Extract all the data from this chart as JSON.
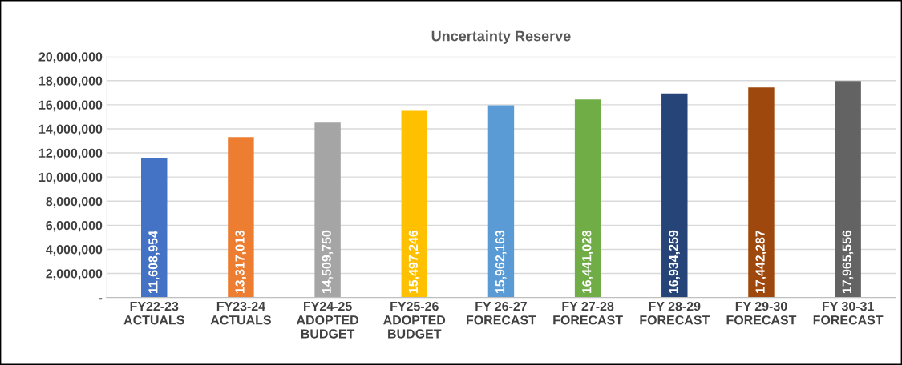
{
  "chart_data": {
    "type": "bar",
    "title": "Uncertainty Reserve",
    "categories": [
      "FY22-23\nACTUALS",
      "FY23-24\nACTUALS",
      "FY24-25\nADOPTED\nBUDGET",
      "FY25-26\nADOPTED\nBUDGET",
      "FY 26-27\nFORECAST",
      "FY 27-28\nFORECAST",
      "FY 28-29\nFORECAST",
      "FY 29-30\nFORECAST",
      "FY 30-31\nFORECAST"
    ],
    "values": [
      11608954,
      13317013,
      14509750,
      15497246,
      15962163,
      16441028,
      16934259,
      17442287,
      17965556
    ],
    "colors": [
      "#4472c4",
      "#ed7d31",
      "#a5a5a5",
      "#ffc000",
      "#5b9bd5",
      "#70ad47",
      "#264478",
      "#9e480e",
      "#636363"
    ],
    "ylim": [
      0,
      20000000
    ],
    "yticks": [
      {
        "value": 0,
        "label": "-"
      },
      {
        "value": 2000000,
        "label": "2,000,000"
      },
      {
        "value": 4000000,
        "label": "4,000,000"
      },
      {
        "value": 6000000,
        "label": "6,000,000"
      },
      {
        "value": 8000000,
        "label": "8,000,000"
      },
      {
        "value": 10000000,
        "label": "10,000,000"
      },
      {
        "value": 12000000,
        "label": "12,000,000"
      },
      {
        "value": 14000000,
        "label": "14,000,000"
      },
      {
        "value": 16000000,
        "label": "16,000,000"
      },
      {
        "value": 18000000,
        "label": "18,000,000"
      },
      {
        "value": 20000000,
        "label": "20,000,000"
      }
    ],
    "value_labels": [
      "11,608,954",
      "13,317,013",
      "14,509,750",
      "15,497,246",
      "15,962,163",
      "16,441,028",
      "16,934,259",
      "17,442,287",
      "17,965,556"
    ],
    "grid": "y"
  }
}
